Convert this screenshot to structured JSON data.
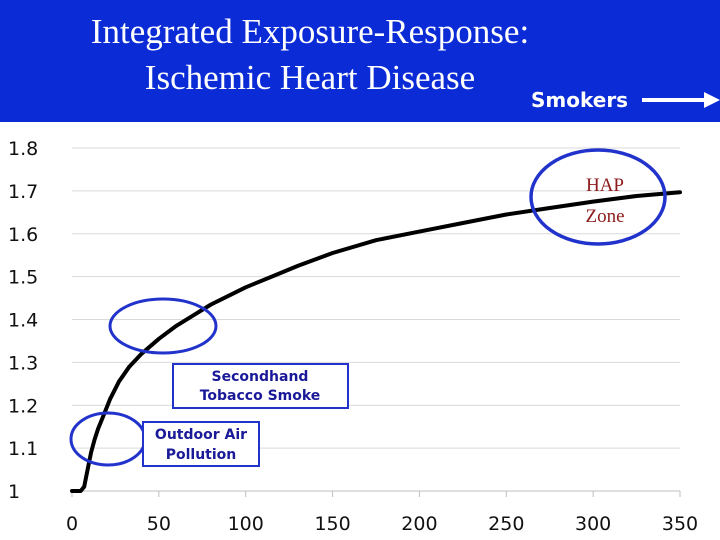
{
  "header": {
    "title_line1": "Integrated Exposure-Response:",
    "title_line2": "Ischemic Heart Disease",
    "smokers_label": "Smokers"
  },
  "colors": {
    "header_bg": "#0a2bd6",
    "highlight_ellipse": "#2233cc",
    "curve": "#000000",
    "annotation_text": "#1a1a99",
    "hap_text": "#8b1a1a"
  },
  "annotations": {
    "hap_zone_line1": "HAP",
    "hap_zone_line2": "Zone",
    "secondhand_line1": "Secondhand",
    "secondhand_line2": "Tobacco Smoke",
    "outdoor_line1": "Outdoor Air",
    "outdoor_line2": "Pollution"
  },
  "chart_data": {
    "type": "line",
    "title": "Integrated Exposure-Response: Ischemic Heart Disease",
    "xlabel": "",
    "ylabel": "",
    "xlim": [
      0,
      350
    ],
    "ylim": [
      1,
      1.8
    ],
    "x_ticks": [
      0,
      50,
      100,
      150,
      200,
      250,
      300,
      350
    ],
    "y_ticks": [
      1,
      1.1,
      1.2,
      1.3,
      1.4,
      1.5,
      1.6,
      1.7,
      1.8
    ],
    "x_tick_labels": [
      "0",
      "50",
      "100",
      "150",
      "200",
      "250",
      "300",
      "350"
    ],
    "y_tick_labels": [
      "1",
      "1.1",
      "1.2",
      "1.3",
      "1.4",
      "1.5",
      "1.6",
      "1.7",
      "1.8"
    ],
    "grid": "horizontal",
    "series": [
      {
        "x": [
          0,
          5,
          7,
          9,
          11,
          13,
          15,
          18,
          22,
          27,
          33,
          40,
          50,
          60,
          70,
          80,
          90,
          100,
          115,
          130,
          150,
          175,
          200,
          225,
          250,
          275,
          300,
          325,
          350
        ],
        "y": [
          1.0,
          1.0,
          1.01,
          1.05,
          1.09,
          1.12,
          1.145,
          1.175,
          1.215,
          1.255,
          1.29,
          1.32,
          1.355,
          1.385,
          1.41,
          1.435,
          1.455,
          1.475,
          1.5,
          1.525,
          1.555,
          1.585,
          1.605,
          1.625,
          1.645,
          1.66,
          1.675,
          1.688,
          1.697
        ]
      }
    ]
  }
}
